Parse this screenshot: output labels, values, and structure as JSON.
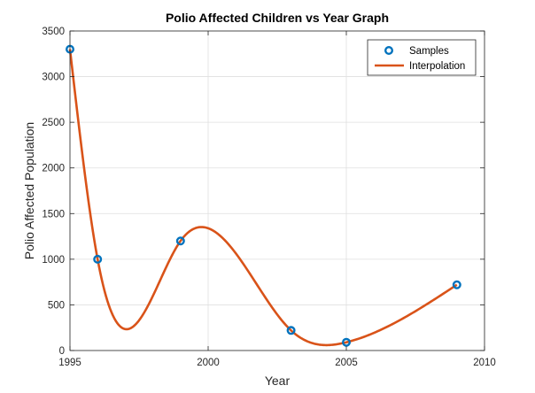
{
  "chart_data": {
    "type": "line",
    "title": "Polio Affected Children vs Year Graph",
    "xlabel": "Year",
    "ylabel": "Polio Affected Population",
    "xlim": [
      1995,
      2010
    ],
    "ylim": [
      0,
      3500
    ],
    "xticks": [
      1995,
      2000,
      2005,
      2010
    ],
    "yticks": [
      0,
      500,
      1000,
      1500,
      2000,
      2500,
      3000,
      3500
    ],
    "grid": true,
    "legend_position": "top-right",
    "series": [
      {
        "name": "Samples",
        "kind": "markers",
        "color": "#0072BD",
        "x": [
          1995,
          1996,
          1999,
          2003,
          2005,
          2009
        ],
        "y": [
          3300,
          1000,
          1200,
          220,
          90,
          720
        ]
      },
      {
        "name": "Interpolation",
        "kind": "line",
        "color": "#D95319",
        "x": [
          1995,
          1996,
          1999,
          2003,
          2005,
          2009
        ],
        "y": [
          3300,
          1000,
          1200,
          220,
          90,
          720
        ]
      }
    ]
  }
}
